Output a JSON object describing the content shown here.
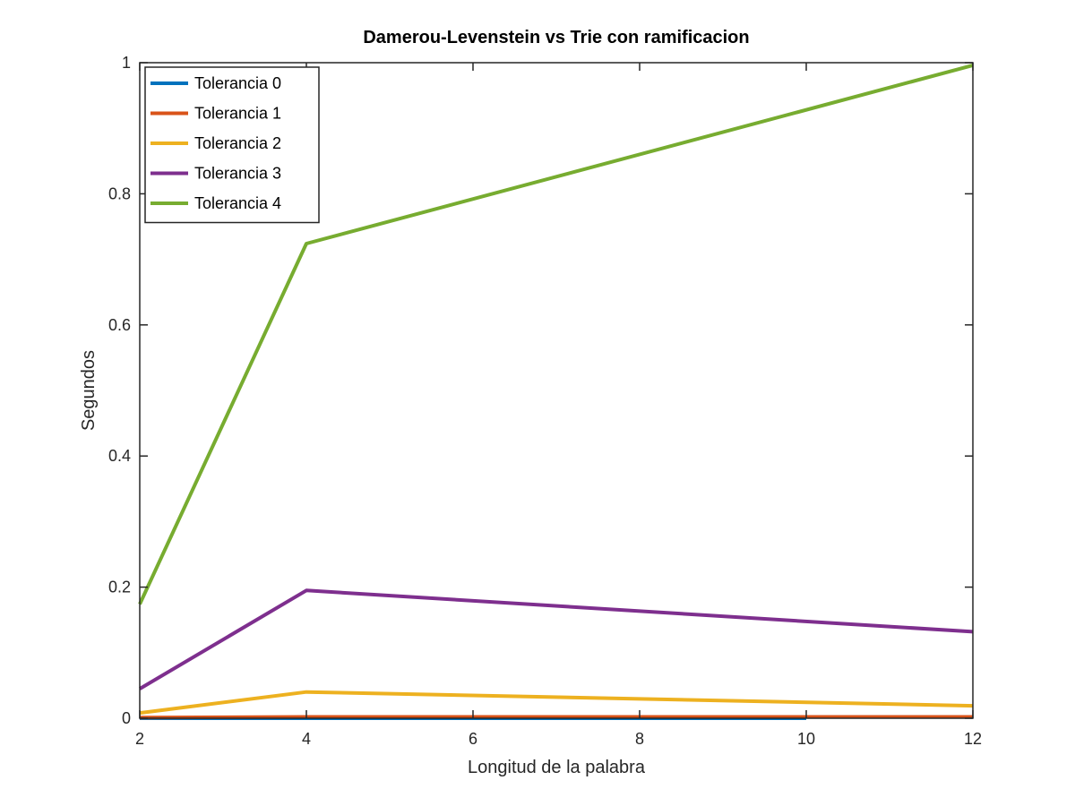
{
  "chart_data": {
    "type": "line",
    "title": "Damerou-Levenstein vs Trie con ramificacion",
    "xlabel": "Longitud de la palabra",
    "ylabel": "Segundos",
    "xlim": [
      2,
      12
    ],
    "ylim": [
      0,
      1
    ],
    "xticks": [
      2,
      4,
      6,
      8,
      10,
      12
    ],
    "xtick_labels": [
      "2",
      "4",
      "6",
      "8",
      "10",
      "12"
    ],
    "yticks": [
      0,
      0.2,
      0.4,
      0.6,
      0.8,
      1
    ],
    "ytick_labels": [
      "0",
      "0.2",
      "0.4",
      "0.6",
      "0.8",
      "1"
    ],
    "grid": false,
    "legend_position": "top-left",
    "series": [
      {
        "name": "Tolerancia 0",
        "color": "#0072BD",
        "x": [
          2,
          4,
          10
        ],
        "y": [
          0.0,
          0.0,
          0.0
        ]
      },
      {
        "name": "Tolerancia 1",
        "color": "#D95319",
        "x": [
          2,
          4,
          12
        ],
        "y": [
          0.001,
          0.002,
          0.002
        ]
      },
      {
        "name": "Tolerancia 2",
        "color": "#EDB120",
        "x": [
          2,
          4,
          12
        ],
        "y": [
          0.008,
          0.04,
          0.019
        ]
      },
      {
        "name": "Tolerancia 3",
        "color": "#7E2F8E",
        "x": [
          2,
          4,
          12
        ],
        "y": [
          0.045,
          0.195,
          0.132
        ]
      },
      {
        "name": "Tolerancia 4",
        "color": "#77AC30",
        "x": [
          2,
          4,
          12
        ],
        "y": [
          0.174,
          0.724,
          0.996
        ]
      }
    ]
  }
}
